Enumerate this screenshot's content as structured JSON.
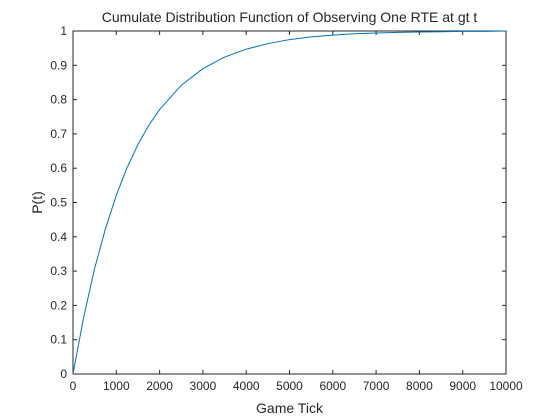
{
  "chart_data": {
    "type": "line",
    "title": "Cumulate Distribution Function of Observing One RTE at gt t",
    "xlabel": "Game Tick",
    "ylabel": "P(t)",
    "xlim": [
      0,
      10000
    ],
    "ylim": [
      0,
      1
    ],
    "xticks": [
      0,
      1000,
      2000,
      3000,
      4000,
      5000,
      6000,
      7000,
      8000,
      9000,
      10000
    ],
    "xtick_labels": [
      "0",
      "1000",
      "2000",
      "3000",
      "4000",
      "5000",
      "6000",
      "7000",
      "8000",
      "9000",
      "10000"
    ],
    "yticks": [
      0,
      0.1,
      0.2,
      0.3,
      0.4,
      0.5,
      0.6,
      0.7,
      0.8,
      0.9,
      1
    ],
    "ytick_labels": [
      "0",
      "0.1",
      "0.2",
      "0.3",
      "0.4",
      "0.5",
      "0.6",
      "0.7",
      "0.8",
      "0.9",
      "1"
    ],
    "grid": false,
    "line_color": "#0072BD",
    "series": [
      {
        "x": [
          0,
          250,
          500,
          750,
          1000,
          1250,
          1500,
          1750,
          2000,
          2500,
          3000,
          3500,
          4000,
          4500,
          5000,
          5500,
          6000,
          6500,
          7000,
          7500,
          8000,
          8500,
          9000,
          9500,
          10000
        ],
        "values": [
          0,
          0.168,
          0.308,
          0.424,
          0.521,
          0.602,
          0.669,
          0.725,
          0.771,
          0.842,
          0.89,
          0.924,
          0.947,
          0.963,
          0.975,
          0.983,
          0.988,
          0.992,
          0.994,
          0.996,
          0.997,
          0.998,
          0.999,
          0.999,
          1.0
        ]
      }
    ]
  }
}
